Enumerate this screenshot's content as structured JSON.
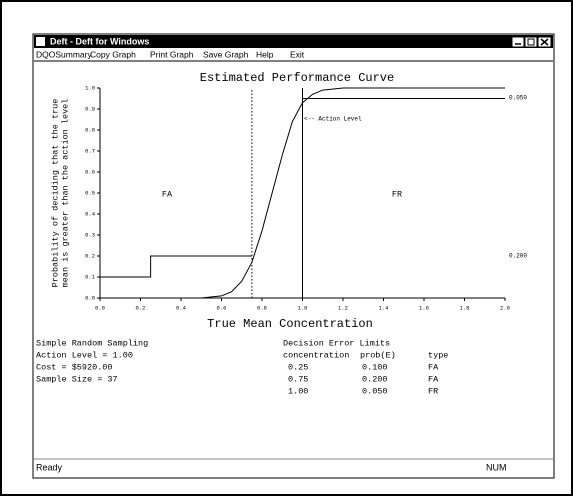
{
  "window": {
    "title": "Deft - Deft for Windows",
    "menu": [
      "DQOSummary",
      "Copy Graph",
      "Print Graph",
      "Save Graph",
      "Help",
      "Exit"
    ]
  },
  "chart_data": {
    "type": "line",
    "title": "Estimated Performance Curve",
    "x_label": "True Mean Concentration",
    "y_label": [
      "Probability of deciding that the true",
      "mean is greater than the action level"
    ],
    "xlim": [
      0,
      2
    ],
    "ylim": [
      0,
      1
    ],
    "xticks": [
      {
        "value": 0,
        "label": "0.0"
      },
      {
        "value": 0.2,
        "label": "0.2"
      },
      {
        "value": 0.4,
        "label": "0.4"
      },
      {
        "value": 0.6,
        "label": "0.6"
      },
      {
        "value": 0.8,
        "label": "0.8"
      },
      {
        "value": 1,
        "label": "1.0"
      },
      {
        "value": 1.2,
        "label": "1.2"
      },
      {
        "value": 1.4,
        "label": "1.4"
      },
      {
        "value": 1.6,
        "label": "1.6"
      },
      {
        "value": 1.8,
        "label": "1.8"
      },
      {
        "value": 2,
        "label": "2.0"
      }
    ],
    "yticks": [
      {
        "value": 0,
        "label": "0.0"
      },
      {
        "value": 0.1,
        "label": "0.1"
      },
      {
        "value": 0.2,
        "label": "0.2"
      },
      {
        "value": 0.3,
        "label": "0.3"
      },
      {
        "value": 0.4,
        "label": "0.4"
      },
      {
        "value": 0.5,
        "label": "0.5"
      },
      {
        "value": 0.6,
        "label": "0.6"
      },
      {
        "value": 0.7,
        "label": "0.7"
      },
      {
        "value": 0.8,
        "label": "0.8"
      },
      {
        "value": 0.9,
        "label": "0.9"
      },
      {
        "value": 1,
        "label": "1.0"
      }
    ],
    "series": [
      {
        "color": "#000000",
        "style": "solid",
        "x": [
          0,
          0.5,
          0.6,
          0.65,
          0.7,
          0.75,
          0.8,
          0.85,
          0.9,
          0.95,
          1.0,
          1.05,
          1.1,
          1.2,
          2.0
        ],
        "values": [
          0,
          0,
          0.01,
          0.03,
          0.08,
          0.17,
          0.32,
          0.5,
          0.68,
          0.84,
          0.93,
          0.97,
          0.99,
          1,
          1
        ]
      },
      {
        "color": "#000000",
        "style": "solid",
        "x": [
          0,
          0.25,
          0.25,
          0.75
        ],
        "values": [
          0.1,
          0.1,
          0.2,
          0.2
        ]
      },
      {
        "color": "#000000",
        "style": "solid",
        "x": [
          1,
          2
        ],
        "values": [
          0.95,
          0.95
        ]
      },
      {
        "color": "#000000",
        "style": "dotted",
        "x": [
          0.75,
          0.75
        ],
        "values": [
          0,
          1
        ]
      },
      {
        "color": "#000000",
        "style": "solid",
        "x": [
          1,
          1
        ],
        "values": [
          0,
          1
        ]
      }
    ],
    "annotations": [
      "<-- Action Level",
      "FA",
      "FR",
      "0.050",
      "0.200"
    ]
  },
  "info": {
    "left": [
      "Simple Random Sampling",
      "Action Level = 1.00",
      "Cost = $5920.00",
      "Sample Size = 37"
    ],
    "right_title": "Decision Error Limits",
    "headers": [
      "concentration",
      "prob(E)",
      "type"
    ],
    "rows": [
      [
        "0.25",
        "0.100",
        "FA"
      ],
      [
        "0.75",
        "0.200",
        "FA"
      ],
      [
        "1.00",
        "0.050",
        "FR"
      ]
    ]
  },
  "status": {
    "left": "Ready",
    "right": "NUM"
  }
}
